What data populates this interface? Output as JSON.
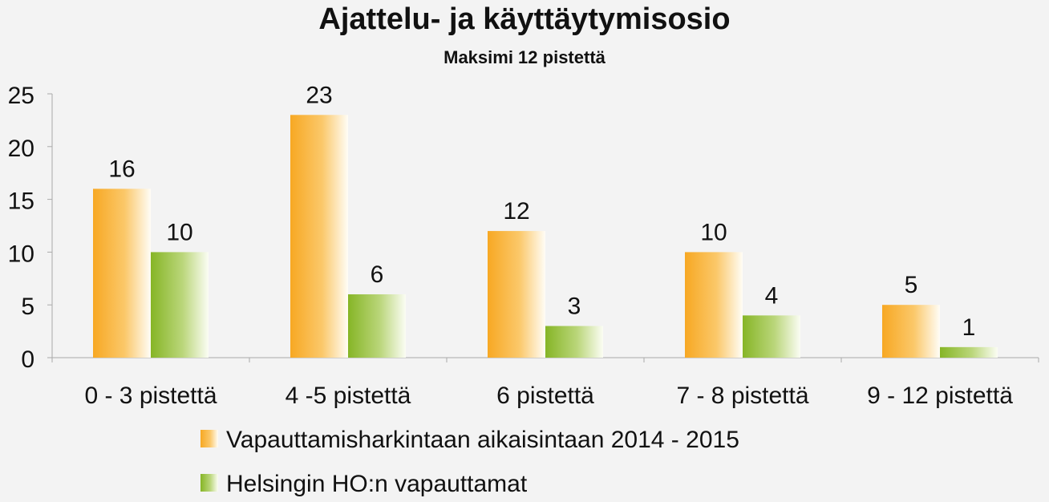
{
  "chart_data": {
    "type": "bar",
    "title": "Ajattelu- ja käyttäytymisosio",
    "subtitle": "Maksimi 12 pistettä",
    "categories": [
      "0 - 3 pistettä",
      "4 -5 pistettä",
      "6 pistettä",
      "7 - 8 pistettä",
      "9 - 12 pistettä"
    ],
    "series": [
      {
        "name": "Vapauttamisharkintaan aikaisintaan 2014 - 2015",
        "values": [
          16,
          23,
          12,
          10,
          5
        ],
        "color": "#f7a823"
      },
      {
        "name": "Helsingin HO:n vapauttamat",
        "values": [
          10,
          6,
          3,
          4,
          1
        ],
        "color": "#8ab82a"
      }
    ],
    "ylim": [
      0,
      25
    ],
    "yticks": [
      0,
      5,
      10,
      15,
      20,
      25
    ],
    "grid": false,
    "legend": "bottom",
    "data_labels": true
  }
}
